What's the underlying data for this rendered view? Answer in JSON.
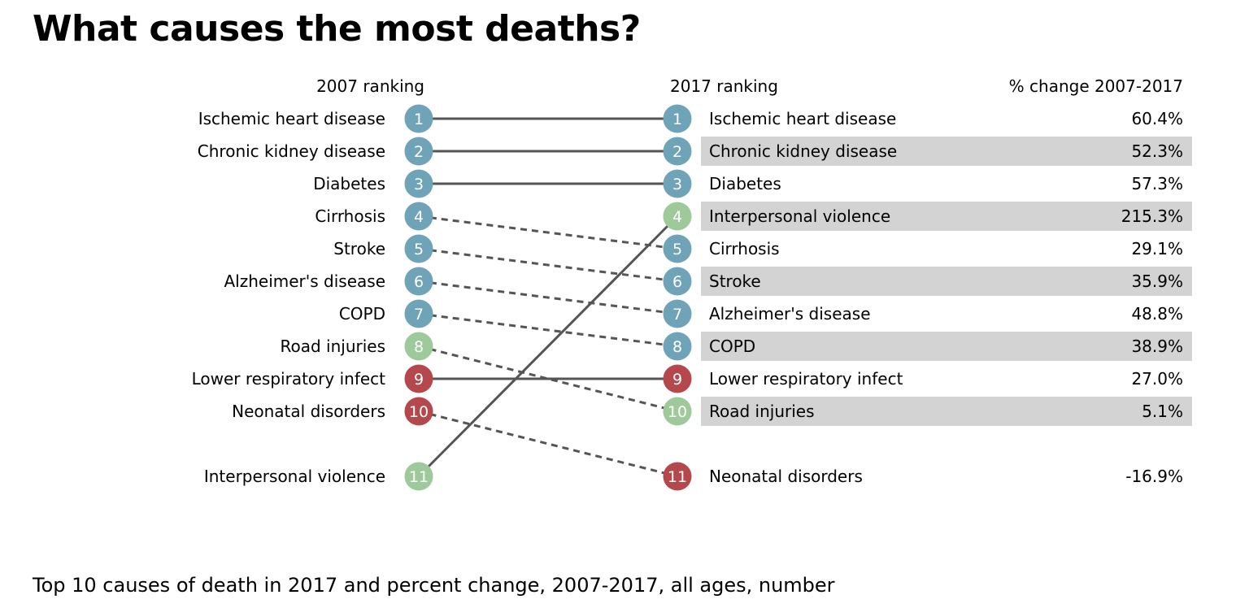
{
  "title": "What causes the most deaths?",
  "caption": "Top 10 causes of death in 2017 and percent change, 2007-2017, all ages, number",
  "chart_data": {
    "type": "slope",
    "headers": {
      "left": "2007 ranking",
      "middle": "2017 ranking",
      "right": "% change 2007-2017"
    },
    "colors": {
      "non_communicable": "#6fa3b8",
      "injuries": "#9ec99b",
      "communicable": "#b5484d",
      "row_shade": "#d3d3d3",
      "line": "#555555"
    },
    "causes": [
      {
        "name": "Ischemic heart disease",
        "rank_2007": 1,
        "rank_2017": 1,
        "pct_change": "60.4%",
        "group": "non_communicable",
        "trend": "same"
      },
      {
        "name": "Chronic kidney disease",
        "rank_2007": 2,
        "rank_2017": 2,
        "pct_change": "52.3%",
        "group": "non_communicable",
        "trend": "same"
      },
      {
        "name": "Diabetes",
        "rank_2007": 3,
        "rank_2017": 3,
        "pct_change": "57.3%",
        "group": "non_communicable",
        "trend": "same"
      },
      {
        "name": "Cirrhosis",
        "rank_2007": 4,
        "rank_2017": 5,
        "pct_change": "29.1%",
        "group": "non_communicable",
        "trend": "down"
      },
      {
        "name": "Stroke",
        "rank_2007": 5,
        "rank_2017": 6,
        "pct_change": "35.9%",
        "group": "non_communicable",
        "trend": "down"
      },
      {
        "name": "Alzheimer's disease",
        "rank_2007": 6,
        "rank_2017": 7,
        "pct_change": "48.8%",
        "group": "non_communicable",
        "trend": "down"
      },
      {
        "name": "COPD",
        "rank_2007": 7,
        "rank_2017": 8,
        "pct_change": "38.9%",
        "group": "non_communicable",
        "trend": "down"
      },
      {
        "name": "Road injuries",
        "rank_2007": 8,
        "rank_2017": 10,
        "pct_change": "5.1%",
        "group": "injuries",
        "trend": "down"
      },
      {
        "name": "Lower respiratory infect",
        "rank_2007": 9,
        "rank_2017": 9,
        "pct_change": "27.0%",
        "group": "communicable",
        "trend": "same"
      },
      {
        "name": "Neonatal disorders",
        "rank_2007": 10,
        "rank_2017": 11,
        "pct_change": "-16.9%",
        "group": "communicable",
        "trend": "down"
      },
      {
        "name": "Interpersonal violence",
        "rank_2007": 11,
        "rank_2017": 4,
        "pct_change": "215.3%",
        "group": "injuries",
        "trend": "up"
      }
    ]
  }
}
